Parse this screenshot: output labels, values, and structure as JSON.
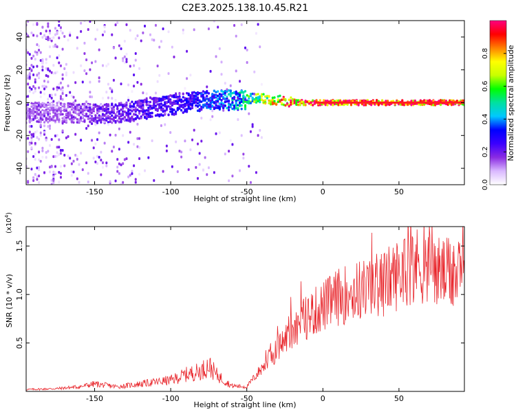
{
  "title": "C2E3.2025.138.10.45.R21",
  "chart_data": [
    {
      "type": "heatmap",
      "xlabel": "Height of straight line (km)",
      "ylabel": "Frequency (Hz)",
      "xlim": [
        -195,
        93
      ],
      "ylim": [
        -50,
        50
      ],
      "x_ticks": [
        -150,
        -100,
        -50,
        0,
        50
      ],
      "y_ticks": [
        -40,
        -20,
        0,
        20,
        40
      ],
      "colorbar": {
        "label": "Normalized spectral amplitude",
        "range": [
          0,
          1
        ],
        "ticks": [
          0.0,
          0.2,
          0.4,
          0.6,
          0.8
        ],
        "tick_labels": [
          "0.0",
          "0.2",
          "0.4",
          "0.6",
          "0.8"
        ],
        "colors": [
          "#ffffff",
          "#d9b8ff",
          "#8a2be2",
          "#3b00ff",
          "#0000ff",
          "#00c8ff",
          "#00e0a0",
          "#00ff00",
          "#c8ff00",
          "#ffff00",
          "#ff8000",
          "#ff0000",
          "#ff0080"
        ]
      },
      "ridge": {
        "description_points_x": [
          -170,
          -150,
          -130,
          -110,
          -90,
          -70,
          -55,
          -45,
          -35,
          -25,
          -15,
          0,
          20,
          50,
          93
        ],
        "center_freq": [
          -6,
          -7,
          -6,
          -3,
          0,
          2,
          1,
          3,
          2,
          1,
          0,
          0,
          0,
          0,
          0
        ],
        "amplitude": [
          0.15,
          0.2,
          0.22,
          0.25,
          0.28,
          0.35,
          0.45,
          0.6,
          0.75,
          0.85,
          0.95,
          1.0,
          1.0,
          1.0,
          1.0
        ]
      }
    },
    {
      "type": "line",
      "xlabel": "Height of straight line (km)",
      "ylabel": "SNR (10 * v/v)",
      "scale_note": "(x10",
      "scale_exp": "4",
      "xlim": [
        -195,
        93
      ],
      "ylim": [
        0,
        1.7
      ],
      "x_ticks": [
        -150,
        -100,
        -50,
        0,
        50
      ],
      "y_ticks": [
        0.5,
        1.0,
        1.5
      ],
      "y_tick_labels": [
        "0.5",
        "1.0",
        "1.5"
      ],
      "series": [
        {
          "color": "#e8242a",
          "envelope_x": [
            -195,
            -175,
            -160,
            -150,
            -135,
            -120,
            -100,
            -90,
            -80,
            -75,
            -70,
            -60,
            -50,
            -40,
            -30,
            -20,
            -10,
            0,
            10,
            20,
            30,
            40,
            50,
            60,
            70,
            80,
            93
          ],
          "envelope_y": [
            0.02,
            0.03,
            0.05,
            0.08,
            0.05,
            0.08,
            0.12,
            0.18,
            0.22,
            0.28,
            0.18,
            0.06,
            0.05,
            0.25,
            0.45,
            0.65,
            0.8,
            0.9,
            1.0,
            1.05,
            1.1,
            1.15,
            1.25,
            1.35,
            1.3,
            1.25,
            1.2
          ]
        }
      ]
    }
  ]
}
